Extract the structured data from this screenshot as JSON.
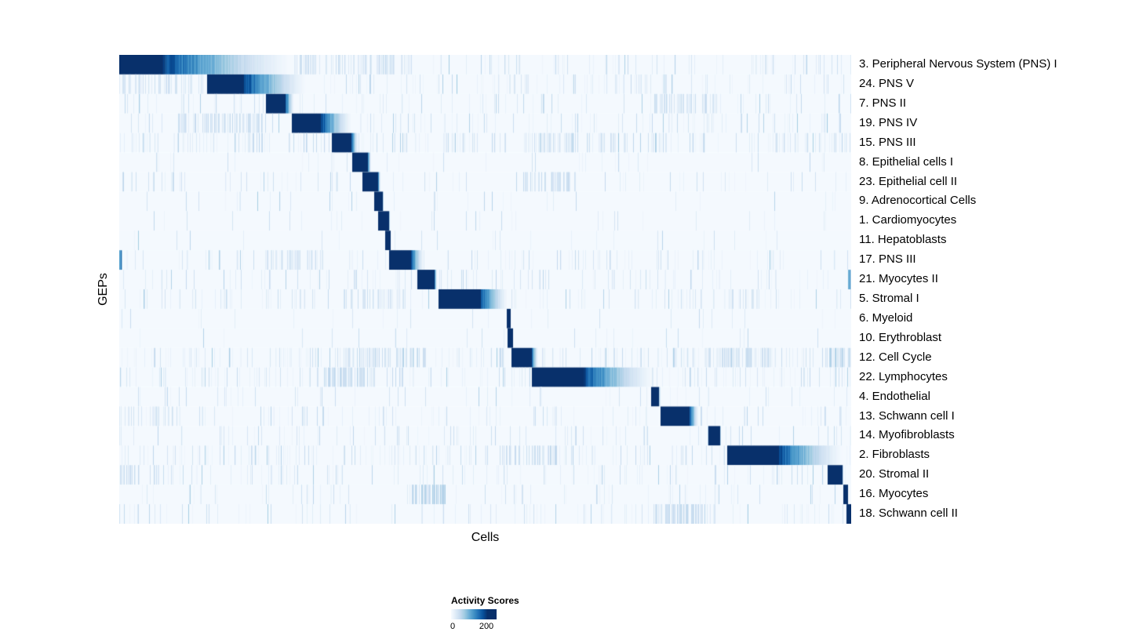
{
  "colors": {
    "background": "#ffffff",
    "heatmap_low": "#f7fbff",
    "heatmap_high": "#08306b",
    "colormap": [
      "#f7fbff",
      "#deebf7",
      "#c6dbef",
      "#9ecae1",
      "#6baed6",
      "#4292c6",
      "#2171b5",
      "#08519c",
      "#08306b"
    ]
  },
  "chart_data": {
    "type": "heatmap",
    "title": "",
    "xlabel": "Cells",
    "ylabel": "GEPs",
    "x_axis_ticks": "none (individual cells, unlabeled columns)",
    "n_rows": 24,
    "colorbar": {
      "title": "Activity Scores",
      "min": 0,
      "max": 200,
      "min_label": "0",
      "max_label": "200"
    },
    "rows": [
      {
        "label": "3. Peripheral Nervous System (PNS) I",
        "block_start": 0.0,
        "block_solid_end": 0.057,
        "fade_end": 0.244,
        "peak": 200,
        "noise_density": 0.13,
        "noise_clusters": [
          [
            0.24,
            0.4,
            0.45,
            0.22
          ]
        ]
      },
      {
        "label": "24. PNS V",
        "block_start": 0.121,
        "block_solid_end": 0.169,
        "fade_end": 0.26,
        "peak": 200,
        "noise_density": 0.13,
        "noise_clusters": [
          [
            0.0,
            0.115,
            0.35,
            0.22
          ]
        ]
      },
      {
        "label": "7. PNS II",
        "block_start": 0.201,
        "block_solid_end": 0.226,
        "fade_end": 0.238,
        "peak": 200,
        "noise_density": 0.09,
        "noise_clusters": [
          [
            0.73,
            0.82,
            0.45,
            0.26
          ]
        ]
      },
      {
        "label": "19. PNS IV",
        "block_start": 0.236,
        "block_solid_end": 0.274,
        "fade_end": 0.319,
        "peak": 200,
        "noise_density": 0.13,
        "noise_clusters": [
          [
            0.08,
            0.2,
            0.45,
            0.26
          ]
        ]
      },
      {
        "label": "15. PNS III",
        "block_start": 0.2915,
        "block_solid_end": 0.316,
        "fade_end": 0.326,
        "peak": 200,
        "noise_density": 0.22,
        "noise_clusters": [
          [
            0.55,
            0.66,
            0.35,
            0.24
          ]
        ]
      },
      {
        "label": "8. Epithelial cells I",
        "block_start": 0.319,
        "block_solid_end": 0.338,
        "fade_end": 0.344,
        "peak": 200,
        "noise_density": 0.05,
        "noise_clusters": []
      },
      {
        "label": "23. Epithelial cell II",
        "block_start": 0.333,
        "block_solid_end": 0.352,
        "fade_end": 0.356,
        "peak": 200,
        "noise_density": 0.07,
        "noise_clusters": [
          [
            0.55,
            0.63,
            0.45,
            0.26
          ]
        ]
      },
      {
        "label": "9. Adrenocortical Cells",
        "block_start": 0.349,
        "block_solid_end": 0.358,
        "fade_end": 0.361,
        "peak": 200,
        "noise_density": 0.035,
        "noise_clusters": []
      },
      {
        "label": "1. Cardiomyocytes",
        "block_start": 0.354,
        "block_solid_end": 0.367,
        "fade_end": 0.369,
        "peak": 200,
        "noise_density": 0.035,
        "noise_clusters": []
      },
      {
        "label": "11. Hepatoblasts",
        "block_start": 0.364,
        "block_solid_end": 0.369,
        "fade_end": 0.37,
        "peak": 200,
        "noise_density": 0.03,
        "noise_clusters": []
      },
      {
        "label": "17. PNS III",
        "block_start": 0.369,
        "block_solid_end": 0.397,
        "fade_end": 0.416,
        "peak": 200,
        "noise_density": 0.13,
        "noise_clusters": [
          [
            0.0,
            0.004,
            1.0,
            0.85
          ],
          [
            0.2,
            0.28,
            0.35,
            0.22
          ]
        ]
      },
      {
        "label": "21. Myocytes II",
        "block_start": 0.408,
        "block_solid_end": 0.429,
        "fade_end": 0.434,
        "peak": 200,
        "noise_density": 0.1,
        "noise_clusters": [
          [
            0.994,
            1.0,
            0.9,
            0.7
          ]
        ]
      },
      {
        "label": "5. Stromal I",
        "block_start": 0.437,
        "block_solid_end": 0.493,
        "fade_end": 0.532,
        "peak": 200,
        "noise_density": 0.13,
        "noise_clusters": [
          [
            0.3,
            0.4,
            0.35,
            0.22
          ],
          [
            0.83,
            0.875,
            0.45,
            0.26
          ]
        ]
      },
      {
        "label": "6. Myeloid",
        "block_start": 0.5295,
        "block_solid_end": 0.533,
        "fade_end": 0.534,
        "peak": 200,
        "noise_density": 0.03,
        "noise_clusters": []
      },
      {
        "label": "10. Erythroblast",
        "block_start": 0.5316,
        "block_solid_end": 0.536,
        "fade_end": 0.537,
        "peak": 200,
        "noise_density": 0.025,
        "noise_clusters": []
      },
      {
        "label": "12. Cell Cycle",
        "block_start": 0.536,
        "block_solid_end": 0.562,
        "fade_end": 0.572,
        "peak": 200,
        "noise_density": 0.2,
        "noise_clusters": [
          [
            0.3,
            0.42,
            0.4,
            0.26
          ],
          [
            0.8,
            0.9,
            0.45,
            0.26
          ],
          [
            0.965,
            1.0,
            0.55,
            0.35
          ]
        ]
      },
      {
        "label": "22. Lymphocytes",
        "block_start": 0.564,
        "block_solid_end": 0.632,
        "fade_end": 0.735,
        "peak": 200,
        "noise_density": 0.18,
        "noise_clusters": [
          [
            0.28,
            0.35,
            0.5,
            0.3
          ]
        ]
      },
      {
        "label": "4. Endothelial",
        "block_start": 0.727,
        "block_solid_end": 0.736,
        "fade_end": 0.738,
        "peak": 200,
        "noise_density": 0.05,
        "noise_clusters": []
      },
      {
        "label": "13. Schwann cell I",
        "block_start": 0.7406,
        "block_solid_end": 0.778,
        "fade_end": 0.792,
        "peak": 200,
        "noise_density": 0.11,
        "noise_clusters": [
          [
            0.0,
            0.08,
            0.35,
            0.22
          ]
        ]
      },
      {
        "label": "14. Myofibroblasts",
        "block_start": 0.805,
        "block_solid_end": 0.819,
        "fade_end": 0.822,
        "peak": 200,
        "noise_density": 0.09,
        "noise_clusters": []
      },
      {
        "label": "2. Fibroblasts",
        "block_start": 0.8317,
        "block_solid_end": 0.9,
        "fade_end": 0.9925,
        "peak": 200,
        "noise_density": 0.18,
        "noise_clusters": [
          [
            0.52,
            0.6,
            0.45,
            0.28
          ]
        ]
      },
      {
        "label": "20. Stromal II",
        "block_start": 0.9689,
        "block_solid_end": 0.987,
        "fade_end": 0.989,
        "peak": 200,
        "noise_density": 0.11,
        "noise_clusters": [
          [
            0.0,
            0.06,
            0.35,
            0.26
          ]
        ]
      },
      {
        "label": "16. Myocytes",
        "block_start": 0.9903,
        "block_solid_end": 0.9946,
        "fade_end": 0.9956,
        "peak": 200,
        "noise_density": 0.09,
        "noise_clusters": [
          [
            0.4,
            0.445,
            0.55,
            0.35
          ]
        ]
      },
      {
        "label": "18. Schwann cell II",
        "block_start": 0.9946,
        "block_solid_end": 1.0,
        "fade_end": 1.0,
        "peak": 200,
        "noise_density": 0.11,
        "noise_clusters": [
          [
            0.73,
            0.8,
            0.55,
            0.3
          ]
        ]
      }
    ]
  }
}
